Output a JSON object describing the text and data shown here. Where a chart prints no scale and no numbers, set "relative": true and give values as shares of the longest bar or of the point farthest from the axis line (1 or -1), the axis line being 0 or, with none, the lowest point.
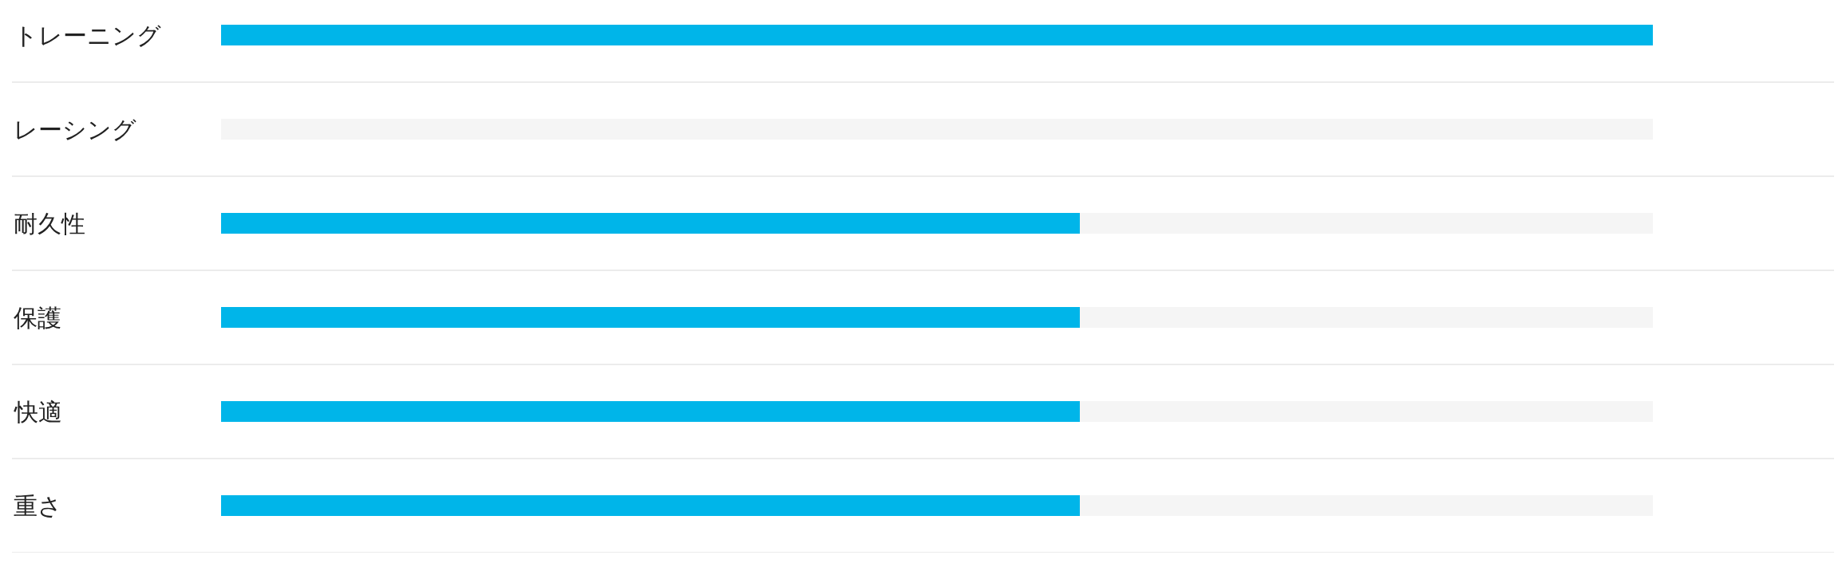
{
  "chart_data": {
    "type": "bar",
    "orientation": "horizontal",
    "stacked": true,
    "relative": true,
    "categories": [
      "トレーニング",
      "レーシング",
      "耐久性",
      "保護",
      "快適",
      "重さ"
    ],
    "series": [
      {
        "color": "#00b5e9",
        "values": [
          1,
          0,
          0.6,
          0.6,
          0.6,
          0.6
        ]
      },
      {
        "color": "#f5f5f5",
        "values": [
          0,
          1,
          0.4,
          0.4,
          0.4,
          0.4
        ]
      }
    ],
    "grid": "y"
  }
}
